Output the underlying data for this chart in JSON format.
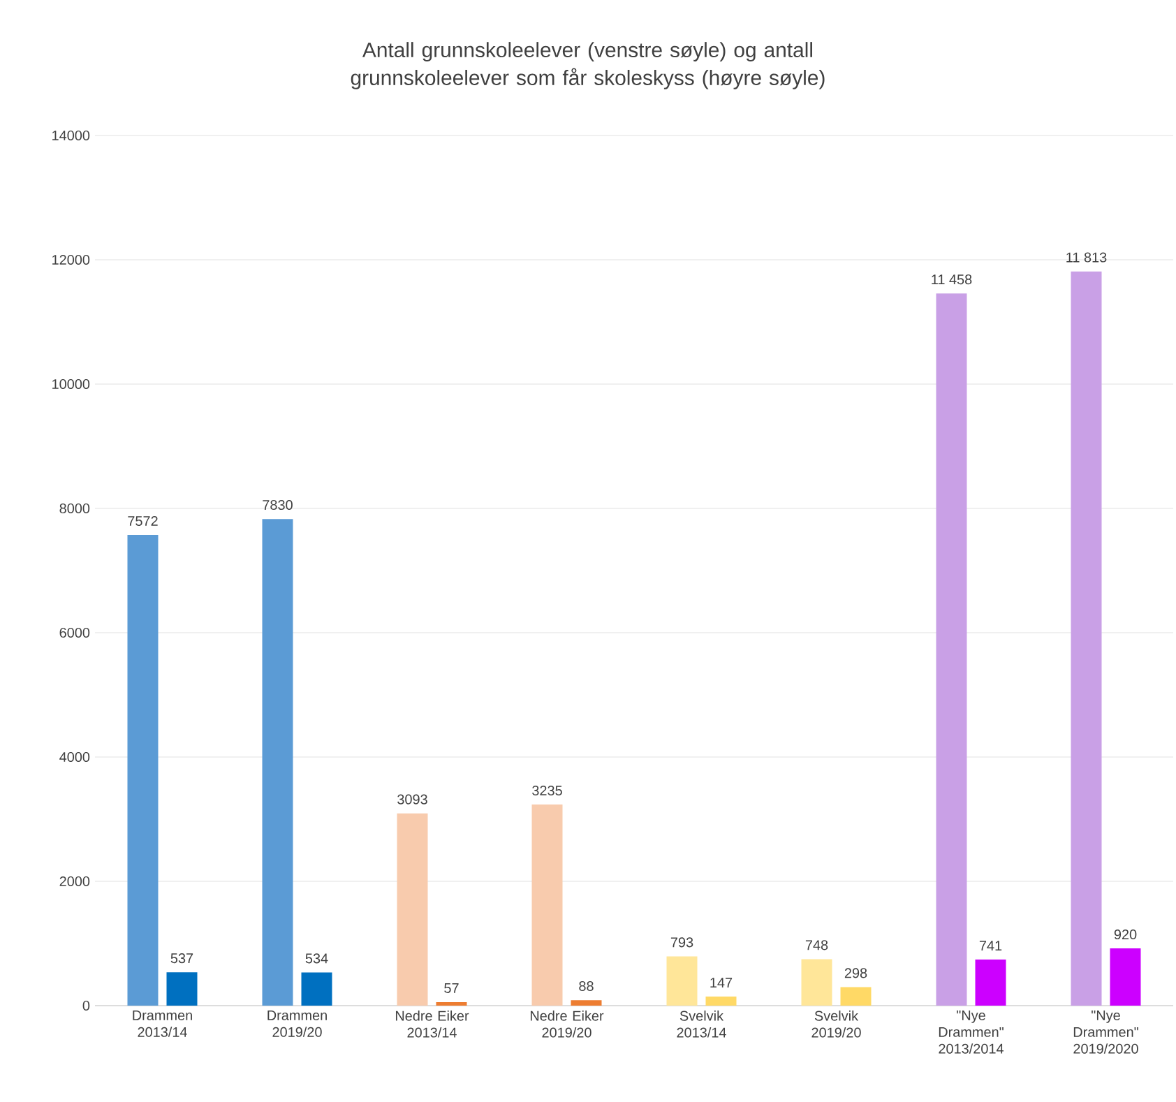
{
  "chart_data": {
    "type": "bar",
    "title": "Antall grunnskoleelever (venstre søyle) og antall grunnskoleelever som får skoleskyss (høyre søyle)",
    "categories": [
      "Drammen 2013/14",
      "Drammen 2019/20",
      "Nedre Eiker 2013/14",
      "Nedre Eiker 2019/20",
      "Svelvik 2013/14",
      "Svelvik 2019/20",
      "\"Nye Drammen\" 2013/2014",
      "\"Nye Drammen\" 2019/2020"
    ],
    "series": [
      {
        "colors": [
          "#5b9bd5",
          "#5b9bd5",
          "#f8cbad",
          "#f8cbad",
          "#ffe699",
          "#ffe699",
          "#c9a0e6",
          "#c9a0e6"
        ],
        "values": [
          7572,
          7830,
          3093,
          3235,
          793,
          748,
          11458,
          11813
        ],
        "value_labels": [
          "7572",
          "7830",
          "3093",
          "3235",
          "793",
          "748",
          "11 458",
          "11 813"
        ]
      },
      {
        "colors": [
          "#0070c0",
          "#0070c0",
          "#ed7d31",
          "#ed7d31",
          "#ffd966",
          "#ffd966",
          "#cc00ff",
          "#cc00ff"
        ],
        "values": [
          537,
          534,
          57,
          88,
          147,
          298,
          741,
          920
        ],
        "value_labels": [
          "537",
          "534",
          "57",
          "88",
          "147",
          "298",
          "741",
          "920"
        ]
      }
    ],
    "ylim": [
      0,
      14000
    ],
    "yticks": [
      0,
      2000,
      4000,
      6000,
      8000,
      10000,
      12000,
      14000
    ],
    "grid": "y"
  }
}
